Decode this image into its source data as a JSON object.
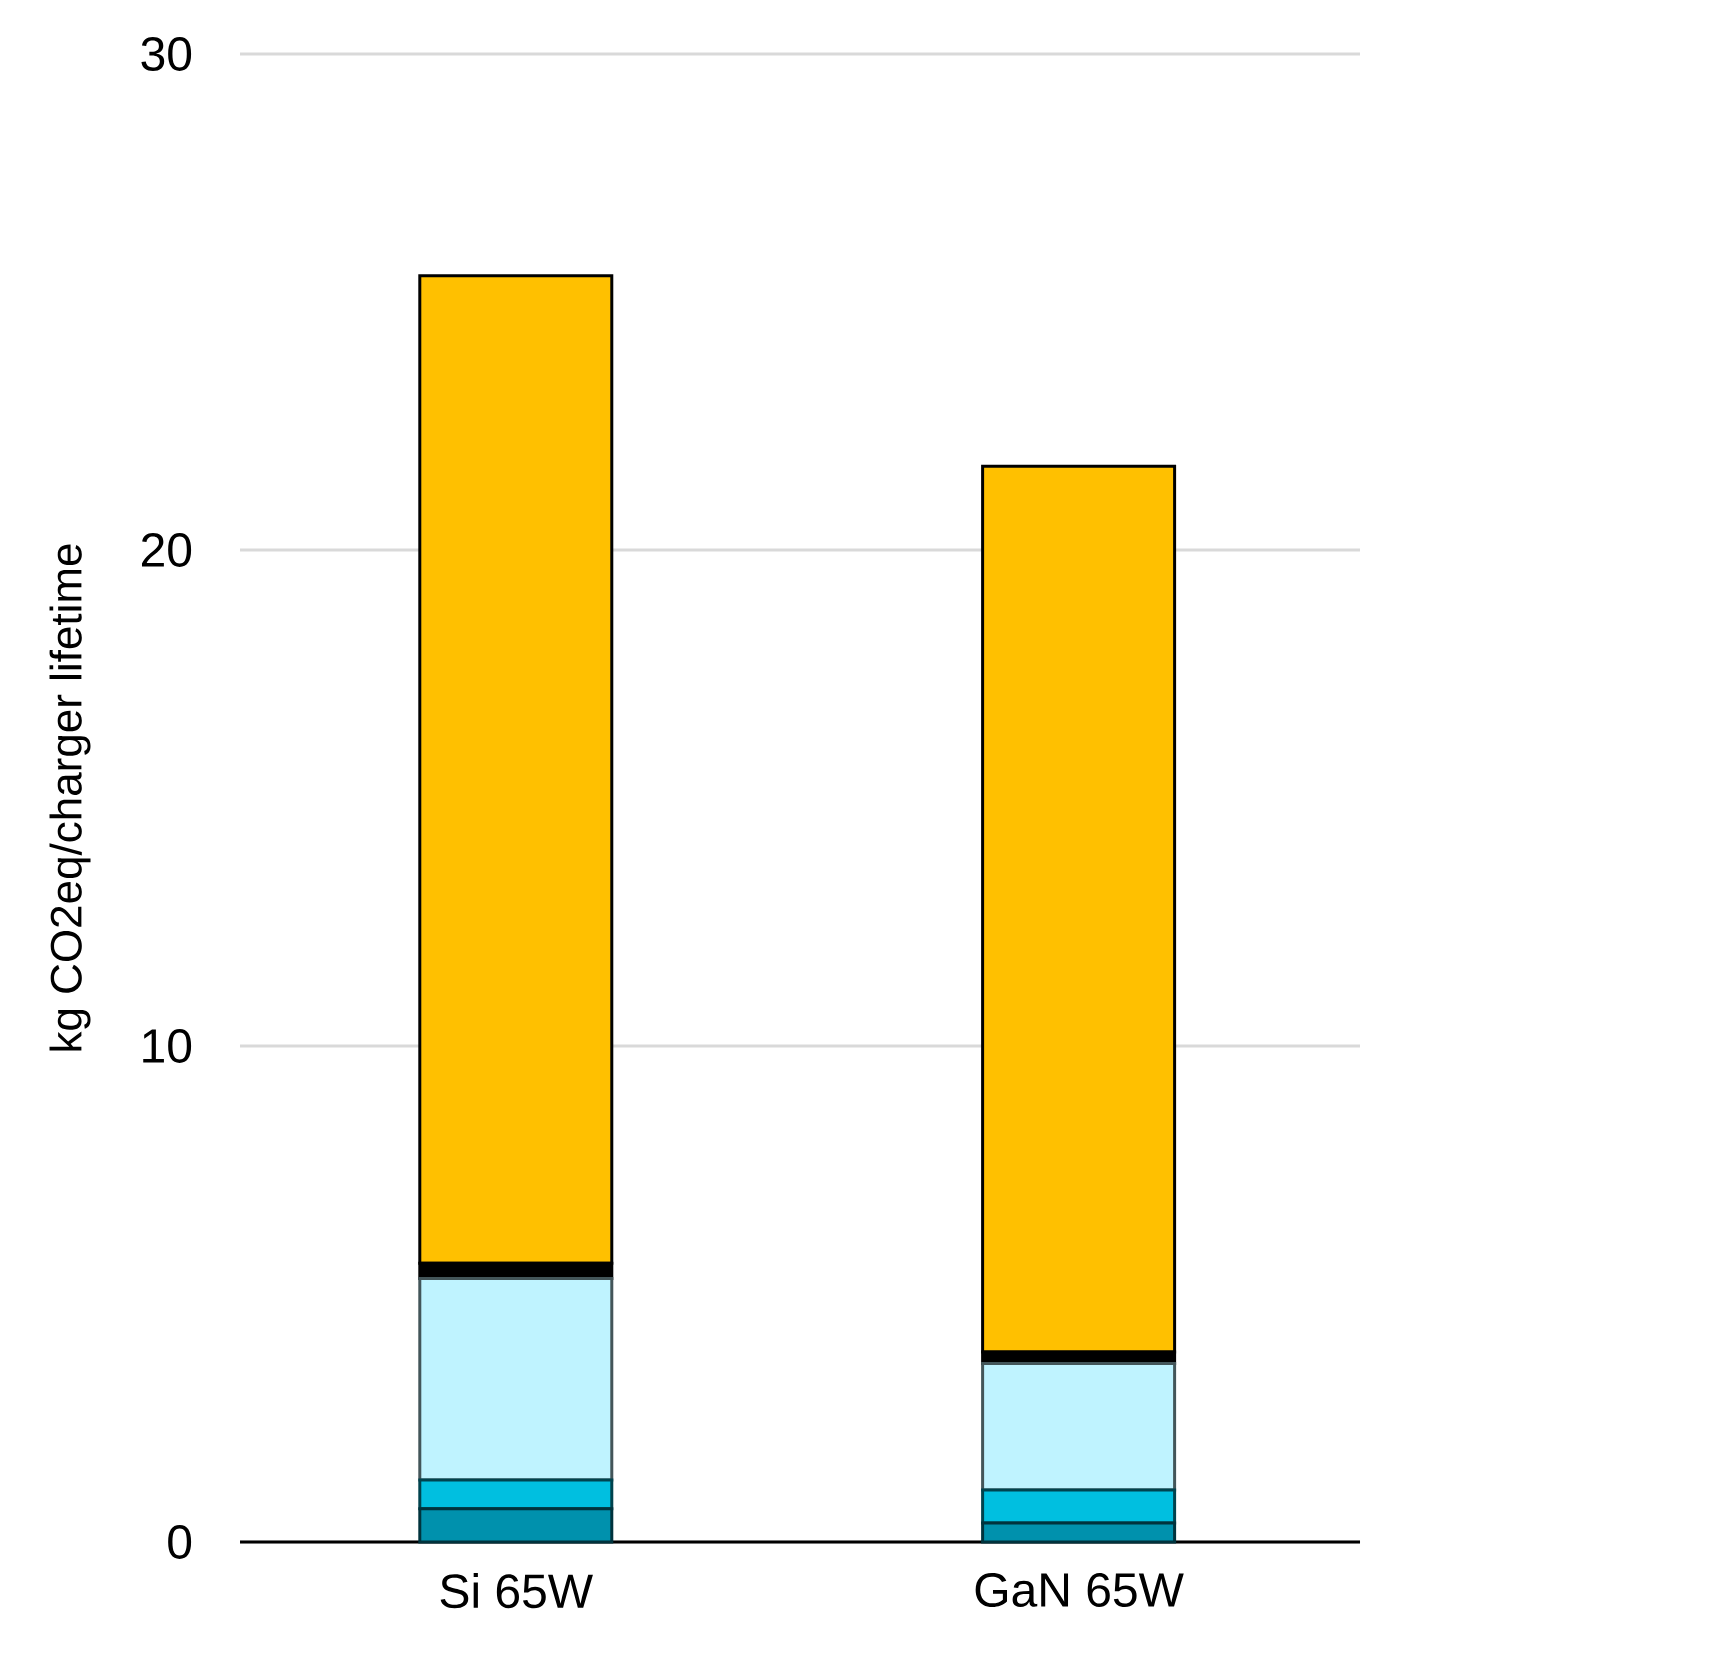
{
  "chart_data": {
    "type": "bar",
    "stacked": true,
    "ylabel": "kg CO2eq/charger lifetime",
    "categories": [
      "Si 65W",
      "GaN 65W"
    ],
    "series": [
      {
        "color": "#0091ad",
        "values": [
          0.67,
          0.38
        ]
      },
      {
        "color": "#00bfe0",
        "values": [
          0.58,
          0.67
        ]
      },
      {
        "color": "#bff3ff",
        "values": [
          4.06,
          2.55
        ]
      },
      {
        "color": "#000000",
        "values": [
          0.31,
          0.23
        ]
      },
      {
        "color": "#ffc000",
        "values": [
          19.91,
          17.86
        ]
      }
    ],
    "ylim": [
      0,
      30
    ],
    "yticks": [
      0,
      10,
      20,
      30
    ],
    "grid": "y"
  }
}
